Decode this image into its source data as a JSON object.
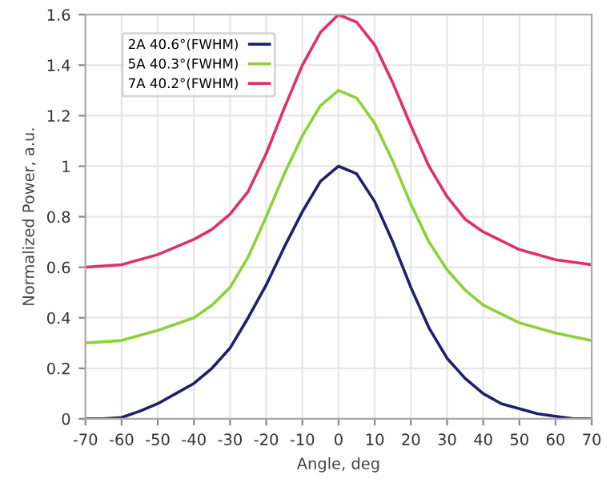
{
  "chart_data": {
    "type": "line",
    "xlabel": "Angle, deg",
    "ylabel": "Normalized Power, a.u.",
    "xlim": [
      -70,
      70
    ],
    "xticks": [
      -70,
      -60,
      -50,
      -40,
      -30,
      -20,
      -10,
      0,
      10,
      20,
      30,
      40,
      50,
      60,
      70
    ],
    "ylim": [
      0,
      1.6
    ],
    "yticks": [
      0,
      0.2,
      0.4,
      0.6,
      0.8,
      1,
      1.2,
      1.4,
      1.6
    ],
    "grid": true,
    "legend": "top left",
    "marker": "none",
    "line_style": "solid",
    "series": [
      {
        "name": "2A 40.6°(FWHM)",
        "color": "#1f1f6e",
        "x": [
          -70,
          -65,
          -60,
          -55,
          -50,
          -45,
          -40,
          -35,
          -30,
          -25,
          -20,
          -15,
          -10,
          -5,
          0,
          5,
          10,
          15,
          20,
          25,
          30,
          35,
          40,
          45,
          50,
          55,
          60,
          65,
          70
        ],
        "values": [
          0,
          0,
          0.005,
          0.03,
          0.06,
          0.1,
          0.14,
          0.2,
          0.28,
          0.4,
          0.53,
          0.68,
          0.82,
          0.94,
          1.0,
          0.97,
          0.86,
          0.7,
          0.52,
          0.36,
          0.24,
          0.16,
          0.1,
          0.06,
          0.04,
          0.02,
          0.01,
          0,
          0
        ]
      },
      {
        "name": "5A 40.3°(FWHM)",
        "color": "#8cd13a",
        "x": [
          -70,
          -60,
          -50,
          -40,
          -35,
          -30,
          -25,
          -20,
          -15,
          -10,
          -5,
          0,
          5,
          10,
          15,
          20,
          25,
          30,
          35,
          40,
          50,
          60,
          70
        ],
        "values": [
          0.3,
          0.31,
          0.35,
          0.4,
          0.45,
          0.52,
          0.64,
          0.8,
          0.97,
          1.12,
          1.24,
          1.3,
          1.27,
          1.17,
          1.02,
          0.85,
          0.7,
          0.59,
          0.51,
          0.45,
          0.38,
          0.34,
          0.31
        ]
      },
      {
        "name": "7A 40.2°(FWHM)",
        "color": "#e0306a",
        "x": [
          -70,
          -60,
          -50,
          -40,
          -35,
          -30,
          -25,
          -20,
          -15,
          -10,
          -5,
          0,
          5,
          10,
          15,
          20,
          25,
          30,
          35,
          40,
          50,
          60,
          70
        ],
        "values": [
          0.6,
          0.61,
          0.65,
          0.71,
          0.75,
          0.81,
          0.9,
          1.05,
          1.23,
          1.4,
          1.53,
          1.6,
          1.57,
          1.48,
          1.33,
          1.16,
          1.0,
          0.88,
          0.79,
          0.74,
          0.67,
          0.63,
          0.61
        ]
      }
    ]
  }
}
